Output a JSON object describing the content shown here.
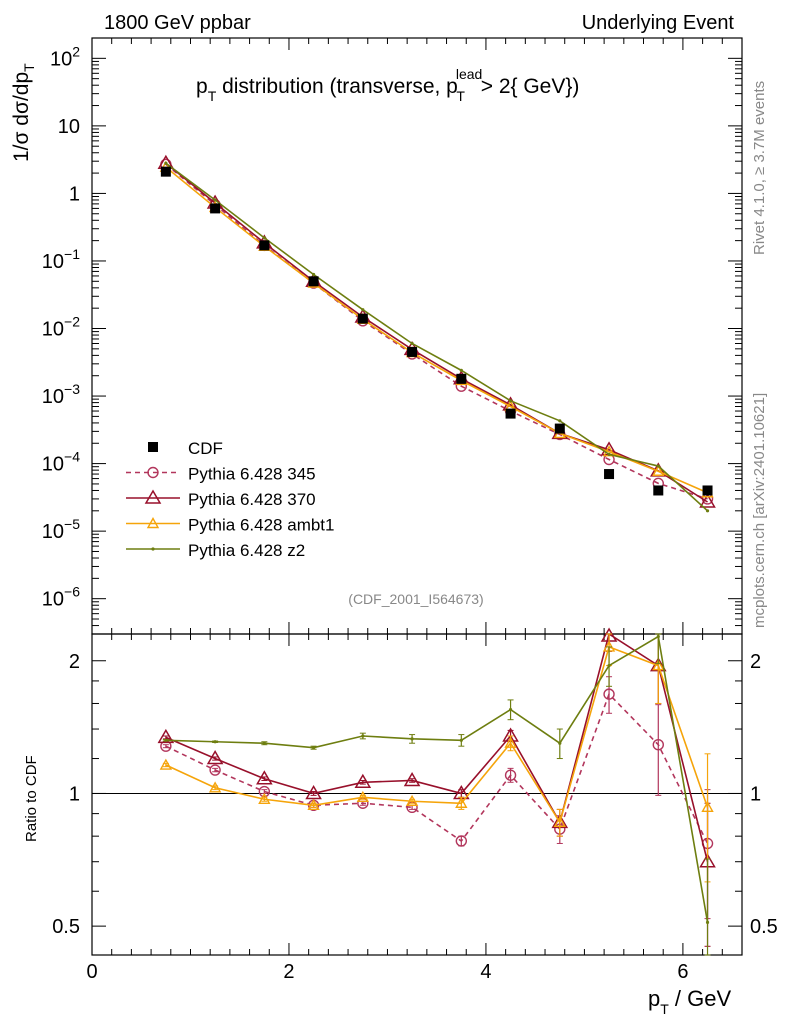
{
  "header": {
    "left": "1800 GeV ppbar",
    "right": "Underlying Event"
  },
  "side_labels": {
    "rivet": "Rivet 4.1.0, ≥ 3.7M events",
    "mcplots": "mcplots.cern.ch [arXiv:2401.10621]"
  },
  "chart_data": [
    {
      "type": "line",
      "panel": "main",
      "title": "p_T distribution (transverse, p_T^lead > 2{ GeV})",
      "title_parts": {
        "p": "p",
        "sub_t": "T",
        "mid": " distribution (transverse, p",
        "sup_lead": "lead",
        "tail": " > 2{ GeV})"
      },
      "ylabel": "1/σ  dσ/dp_T",
      "ylabel_parts": {
        "a": "1/σ  dσ/dp",
        "sub": "T"
      },
      "yscale": "log",
      "ylim": [
        3e-07,
        200
      ],
      "xlim": [
        0,
        6.6
      ],
      "yticks": [
        {
          "v": 100,
          "b": "10",
          "e": "2"
        },
        {
          "v": 10,
          "b": "10",
          "e": ""
        },
        {
          "v": 1,
          "b": "1",
          "e": ""
        },
        {
          "v": 0.1,
          "b": "10",
          "e": "−1"
        },
        {
          "v": 0.01,
          "b": "10",
          "e": "−2"
        },
        {
          "v": 0.001,
          "b": "10",
          "e": "−3"
        },
        {
          "v": 0.0001,
          "b": "10",
          "e": "−4"
        },
        {
          "v": 1e-05,
          "b": "10",
          "e": "−5"
        },
        {
          "v": 1e-06,
          "b": "10",
          "e": "−6"
        }
      ],
      "watermark": "(CDF_2001_I564673)",
      "x": [
        0.75,
        1.25,
        1.75,
        2.25,
        2.75,
        3.25,
        3.75,
        4.25,
        4.75,
        5.25,
        5.75,
        6.25
      ],
      "series": [
        {
          "name": "CDF",
          "values": [
            2.1,
            0.6,
            0.17,
            0.05,
            0.014,
            0.0045,
            0.0018,
            0.00055,
            0.00033,
            7e-05,
            4e-05,
            4e-05
          ]
        },
        {
          "name": "Pythia 6.428 345",
          "values": [
            2.7,
            0.68,
            0.17,
            0.047,
            0.013,
            0.0042,
            0.0014,
            0.0006,
            0.00027,
            0.000115,
            5.1e-05,
            3e-05
          ]
        },
        {
          "name": "Pythia 6.428 370",
          "values": [
            2.8,
            0.72,
            0.185,
            0.05,
            0.0148,
            0.0049,
            0.0018,
            0.00074,
            0.00028,
            0.00016,
            7.8e-05,
            2.7e-05
          ]
        },
        {
          "name": "Pythia 6.428 ambt1",
          "values": [
            2.45,
            0.62,
            0.165,
            0.047,
            0.0137,
            0.0044,
            0.0017,
            0.0007,
            0.00028,
            0.00015,
            7.7e-05,
            3.7e-05
          ]
        },
        {
          "name": "Pythia 6.428 z2",
          "values": [
            2.8,
            0.8,
            0.22,
            0.063,
            0.019,
            0.006,
            0.0024,
            0.00085,
            0.00043,
            0.000137,
            9.2e-05,
            2e-05
          ]
        }
      ]
    },
    {
      "type": "line",
      "panel": "ratio",
      "ylabel": "Ratio to CDF",
      "xlabel": "p_T / GeV",
      "xlabel_parts": {
        "p": "p",
        "sub": "T",
        "tail": " / GeV"
      },
      "yscale": "log",
      "ylim": [
        0.43,
        2.3
      ],
      "xlim": [
        0,
        6.6
      ],
      "yticks": [
        {
          "v": 0.5,
          "label": "0.5"
        },
        {
          "v": 1,
          "label": "1"
        },
        {
          "v": 2,
          "label": "2"
        }
      ],
      "xticks": [
        {
          "v": 0,
          "label": "0"
        },
        {
          "v": 2,
          "label": "2"
        },
        {
          "v": 4,
          "label": "4"
        },
        {
          "v": 6,
          "label": "6"
        }
      ],
      "x": [
        0.75,
        1.25,
        1.75,
        2.25,
        2.75,
        3.25,
        3.75,
        4.25,
        4.75,
        5.25,
        5.75,
        6.25
      ],
      "series": [
        {
          "name": "Pythia 6.428 345",
          "values": [
            1.28,
            1.13,
            1.01,
            0.94,
            0.95,
            0.93,
            0.78,
            1.1,
            0.83,
            1.68,
            1.29,
            0.77
          ],
          "errors": [
            0.01,
            0.01,
            0.01,
            0.01,
            0.01,
            0.01,
            0.02,
            0.04,
            0.06,
            0.16,
            0.3,
            0.25
          ]
        },
        {
          "name": "Pythia 6.428 370",
          "values": [
            1.34,
            1.2,
            1.08,
            1.0,
            1.06,
            1.07,
            1.0,
            1.35,
            0.86,
            2.3,
            1.95,
            0.7
          ],
          "errors": [
            0.01,
            0.01,
            0.01,
            0.01,
            0.01,
            0.01,
            0.02,
            0.04,
            0.06,
            0.2,
            0.35,
            0.25
          ]
        },
        {
          "name": "Pythia 6.428 ambt1",
          "values": [
            1.16,
            1.03,
            0.97,
            0.94,
            0.98,
            0.96,
            0.95,
            1.3,
            0.86,
            2.15,
            1.95,
            0.93
          ],
          "errors": [
            0.01,
            0.01,
            0.01,
            0.01,
            0.01,
            0.01,
            0.03,
            0.05,
            0.06,
            0.2,
            0.35,
            0.3
          ]
        },
        {
          "name": "Pythia 6.428 z2",
          "values": [
            1.32,
            1.31,
            1.3,
            1.27,
            1.35,
            1.33,
            1.32,
            1.55,
            1.3,
            1.95,
            2.27,
            0.51
          ],
          "errors": [
            0.005,
            0.005,
            0.01,
            0.01,
            0.02,
            0.03,
            0.04,
            0.08,
            0.1,
            0.2,
            0.3,
            0.2
          ]
        }
      ]
    }
  ],
  "legend": [
    {
      "label": "CDF",
      "color": "#000000",
      "marker": "square",
      "dash": ""
    },
    {
      "label": "Pythia 6.428 345",
      "color": "#b2365c",
      "marker": "circle",
      "dash": "5,4"
    },
    {
      "label": "Pythia 6.428 370",
      "color": "#98102b",
      "marker": "triangle",
      "dash": ""
    },
    {
      "label": "Pythia 6.428 ambt1",
      "color": "#f5a40a",
      "marker": "triangle-small",
      "dash": ""
    },
    {
      "label": "Pythia 6.428 z2",
      "color": "#6e7e10",
      "marker": "dot",
      "dash": ""
    }
  ]
}
